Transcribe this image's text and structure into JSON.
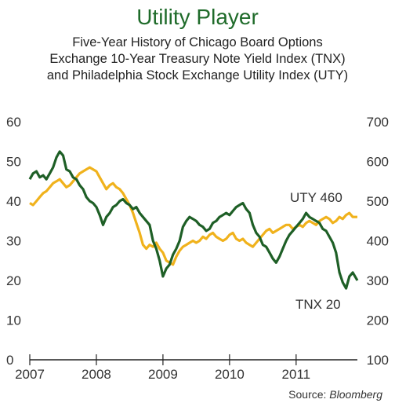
{
  "header": {
    "title": "Utility Player",
    "subtitle_lines": [
      "Five-Year History of Chicago Board Options",
      "Exchange 10-Year Treasury Note Yield Index (TNX)",
      "and Philadelphia Stock Exchange Utility Index (UTY)"
    ]
  },
  "source": {
    "label": "Source:",
    "name": "Bloomberg"
  },
  "colors": {
    "tnx": "#1e5f26",
    "uty": "#f0b21c",
    "title": "#1f6b2a",
    "tnx_label": "#2f7d32",
    "axis": "#222222"
  },
  "chart_data": {
    "type": "line",
    "title": "Utility Player",
    "x_ticks": [
      "2007",
      "2008",
      "2009",
      "2010",
      "2011"
    ],
    "x_range": [
      2007.0,
      2011.92
    ],
    "y_left": {
      "ticks": [
        "0",
        "10",
        "20",
        "30",
        "40",
        "50",
        "60"
      ],
      "range": [
        0,
        60
      ]
    },
    "y_right": {
      "ticks": [
        "100",
        "200",
        "300",
        "400",
        "500",
        "600",
        "700"
      ],
      "range": [
        100,
        700
      ]
    },
    "grid": false,
    "annotations": [
      {
        "text": "UTY 460",
        "series": "UTY"
      },
      {
        "text": "TNX 20",
        "series": "TNX"
      }
    ],
    "series": [
      {
        "name": "TNX",
        "axis": "left",
        "x": [
          2007.0,
          2007.05,
          2007.1,
          2007.15,
          2007.2,
          2007.25,
          2007.3,
          2007.35,
          2007.4,
          2007.45,
          2007.5,
          2007.55,
          2007.6,
          2007.65,
          2007.7,
          2007.75,
          2007.8,
          2007.85,
          2007.9,
          2007.95,
          2008.0,
          2008.05,
          2008.1,
          2008.15,
          2008.2,
          2008.25,
          2008.3,
          2008.35,
          2008.4,
          2008.45,
          2008.5,
          2008.55,
          2008.6,
          2008.65,
          2008.7,
          2008.75,
          2008.8,
          2008.85,
          2008.9,
          2008.95,
          2009.0,
          2009.05,
          2009.1,
          2009.15,
          2009.2,
          2009.25,
          2009.3,
          2009.35,
          2009.4,
          2009.45,
          2009.5,
          2009.55,
          2009.6,
          2009.65,
          2009.7,
          2009.75,
          2009.8,
          2009.85,
          2009.9,
          2009.95,
          2010.0,
          2010.05,
          2010.1,
          2010.15,
          2010.2,
          2010.25,
          2010.3,
          2010.35,
          2010.4,
          2010.45,
          2010.5,
          2010.55,
          2010.6,
          2010.65,
          2010.7,
          2010.75,
          2010.8,
          2010.85,
          2010.9,
          2010.95,
          2011.0,
          2011.05,
          2011.1,
          2011.15,
          2011.2,
          2011.25,
          2011.3,
          2011.35,
          2011.4,
          2011.45,
          2011.5,
          2011.55,
          2011.6,
          2011.65,
          2011.7,
          2011.75,
          2011.8,
          2011.85,
          2011.92
        ],
        "values": [
          45.5,
          47.0,
          47.5,
          46.0,
          46.5,
          45.5,
          47.0,
          48.5,
          51.0,
          52.5,
          51.5,
          48.0,
          47.5,
          46.0,
          45.5,
          44.0,
          43.0,
          41.0,
          40.0,
          39.5,
          38.5,
          36.5,
          34.0,
          36.0,
          37.0,
          38.5,
          39.0,
          40.0,
          40.5,
          39.5,
          39.0,
          38.0,
          38.5,
          37.0,
          36.0,
          35.0,
          34.0,
          30.0,
          28.0,
          25.0,
          21.0,
          23.0,
          24.0,
          26.5,
          28.0,
          30.0,
          33.5,
          35.0,
          36.0,
          35.5,
          35.0,
          34.0,
          33.5,
          32.5,
          33.0,
          34.5,
          35.0,
          36.0,
          36.5,
          37.0,
          36.5,
          37.5,
          38.5,
          39.0,
          39.5,
          38.0,
          37.0,
          34.0,
          32.0,
          31.0,
          29.0,
          28.5,
          27.0,
          25.5,
          24.5,
          26.0,
          28.0,
          30.0,
          31.5,
          32.5,
          33.5,
          34.5,
          35.5,
          37.0,
          36.0,
          35.5,
          35.0,
          34.5,
          33.0,
          32.5,
          31.0,
          29.5,
          27.0,
          22.0,
          19.5,
          18.0,
          21.0,
          22.0,
          20.0
        ]
      },
      {
        "name": "UTY",
        "axis": "right",
        "x": [
          2007.0,
          2007.05,
          2007.1,
          2007.15,
          2007.2,
          2007.25,
          2007.3,
          2007.35,
          2007.4,
          2007.45,
          2007.5,
          2007.55,
          2007.6,
          2007.65,
          2007.7,
          2007.75,
          2007.8,
          2007.85,
          2007.9,
          2007.95,
          2008.0,
          2008.05,
          2008.1,
          2008.15,
          2008.2,
          2008.25,
          2008.3,
          2008.35,
          2008.4,
          2008.45,
          2008.5,
          2008.55,
          2008.6,
          2008.65,
          2008.7,
          2008.75,
          2008.8,
          2008.85,
          2008.9,
          2008.95,
          2009.0,
          2009.05,
          2009.1,
          2009.15,
          2009.2,
          2009.25,
          2009.3,
          2009.35,
          2009.4,
          2009.45,
          2009.5,
          2009.55,
          2009.6,
          2009.65,
          2009.7,
          2009.75,
          2009.8,
          2009.85,
          2009.9,
          2009.95,
          2010.0,
          2010.05,
          2010.1,
          2010.15,
          2010.2,
          2010.25,
          2010.3,
          2010.35,
          2010.4,
          2010.45,
          2010.5,
          2010.55,
          2010.6,
          2010.65,
          2010.7,
          2010.75,
          2010.8,
          2010.85,
          2010.9,
          2010.95,
          2011.0,
          2011.05,
          2011.1,
          2011.15,
          2011.2,
          2011.25,
          2011.3,
          2011.35,
          2011.4,
          2011.45,
          2011.5,
          2011.55,
          2011.6,
          2011.65,
          2011.7,
          2011.75,
          2011.8,
          2011.85,
          2011.92
        ],
        "values": [
          495,
          490,
          500,
          510,
          520,
          525,
          535,
          545,
          550,
          555,
          545,
          535,
          540,
          550,
          560,
          570,
          575,
          580,
          585,
          580,
          575,
          560,
          545,
          530,
          540,
          545,
          535,
          530,
          520,
          505,
          490,
          470,
          445,
          420,
          390,
          380,
          390,
          385,
          395,
          380,
          370,
          350,
          345,
          340,
          360,
          375,
          385,
          390,
          395,
          400,
          395,
          400,
          410,
          405,
          415,
          420,
          410,
          405,
          400,
          405,
          415,
          420,
          405,
          400,
          405,
          395,
          390,
          385,
          395,
          405,
          415,
          425,
          430,
          420,
          425,
          430,
          435,
          440,
          440,
          430,
          435,
          440,
          435,
          445,
          450,
          445,
          440,
          450,
          455,
          460,
          455,
          445,
          450,
          460,
          455,
          465,
          470,
          460,
          460
        ]
      }
    ]
  }
}
